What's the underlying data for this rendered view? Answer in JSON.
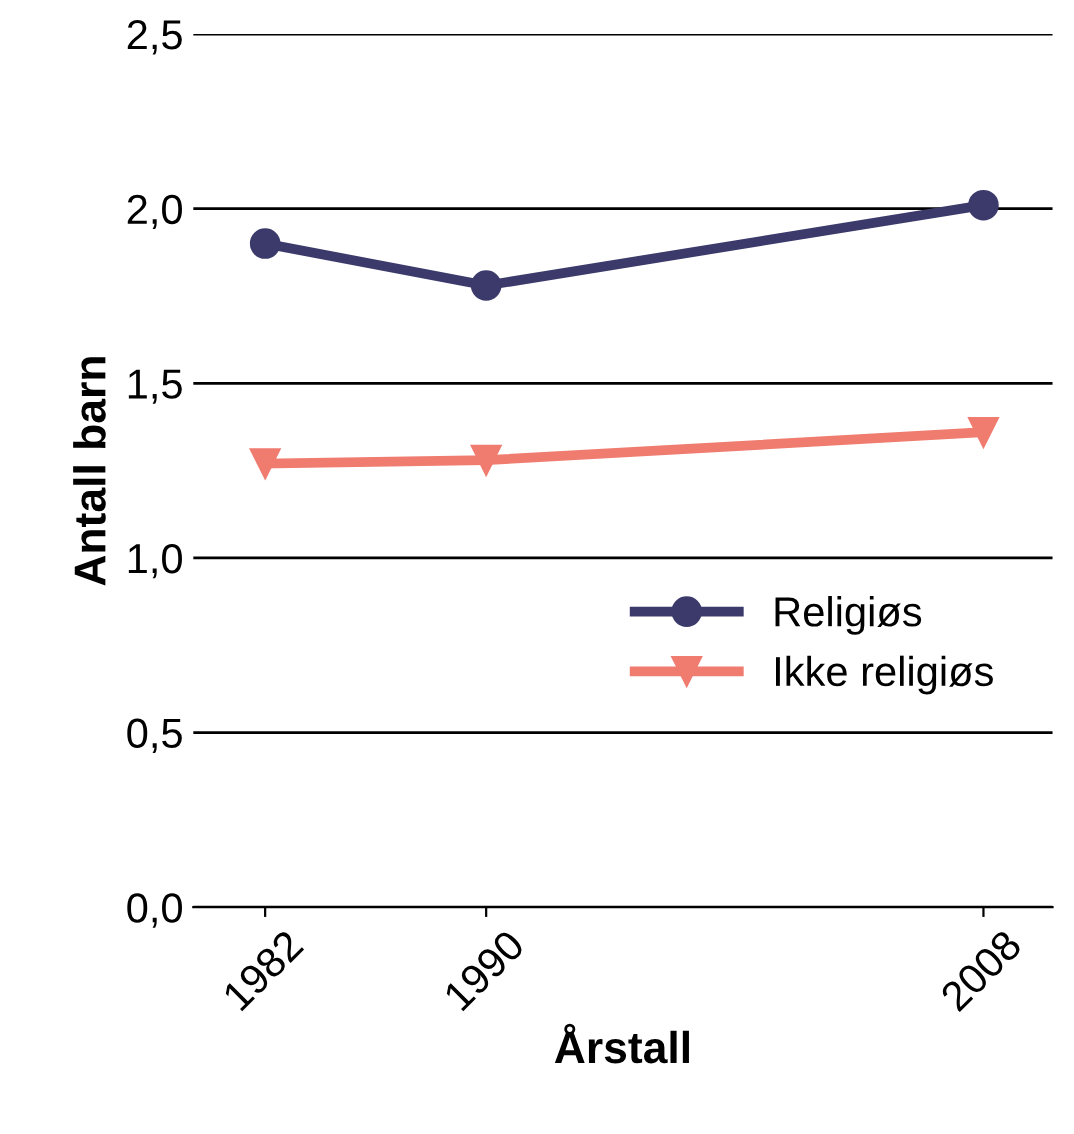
{
  "chart_data": {
    "type": "line",
    "xlabel": "Årstall",
    "ylabel": "Antall barn",
    "x": [
      1982,
      1990,
      2008
    ],
    "series": [
      {
        "name": "Religiøs",
        "color": "#3b3a6b",
        "values": [
          1.9,
          1.78,
          2.01
        ],
        "marker": "circle"
      },
      {
        "name": "Ikke religiøs",
        "color": "#f07b6f",
        "values": [
          1.27,
          1.28,
          1.36
        ],
        "marker": "triangle"
      }
    ],
    "xlim": [
      1979.4,
      2010.5
    ],
    "xticks": [
      1982,
      1990,
      2008
    ],
    "ylim": [
      0,
      2.5
    ],
    "yticks": [
      {
        "value": 0,
        "label": "0,0"
      },
      {
        "value": 0.5,
        "label": "0,5"
      },
      {
        "value": 1,
        "label": "1,0"
      },
      {
        "value": 1.5,
        "label": "1,5"
      },
      {
        "value": 2,
        "label": "2,0"
      },
      {
        "value": 2.5,
        "label": "2,5"
      }
    ],
    "grid": "y",
    "legend": "right",
    "line_style": "solid"
  }
}
